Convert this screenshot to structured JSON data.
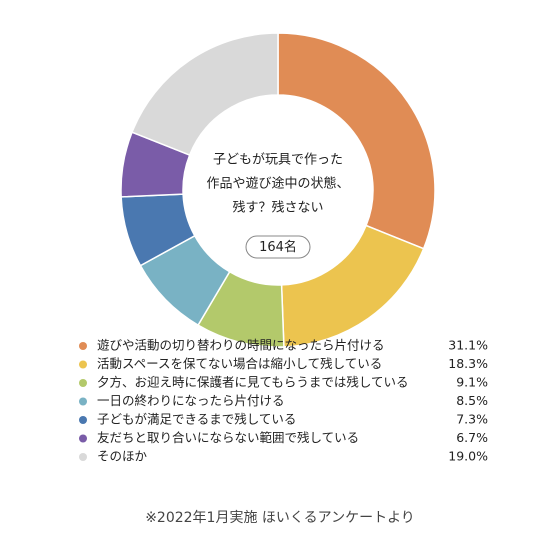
{
  "chart_data": {
    "type": "donut",
    "title_lines": [
      "子どもが玩具で作った",
      "作品や遊び途中の状態、",
      "残す？残さない"
    ],
    "count_label": "164名",
    "categories": [
      "遊びや活動の切り替わりの時間になったら片付ける",
      "活動スペースを保てない場合は縮小して残している",
      "夕方、お迎え時に保護者に見てもらうまでは残している",
      "一日の終わりになったら片付ける",
      "子どもが満足できるまで残している",
      "友だちと取り合いにならない範囲で残している",
      "そのほか"
    ],
    "values": [
      31.1,
      18.3,
      9.1,
      8.5,
      7.3,
      6.7,
      19.0
    ],
    "value_labels": [
      "31.1%",
      "18.3%",
      "9.1%",
      "8.5%",
      "7.3%",
      "6.7%",
      "19.0%"
    ],
    "colors": [
      "#e08c55",
      "#ecc44f",
      "#b3c96b",
      "#79b2c4",
      "#4a78b0",
      "#7a5ca8",
      "#d9d9d9"
    ],
    "footnote": "※2022年1月実施 ほいくるアンケートより"
  }
}
